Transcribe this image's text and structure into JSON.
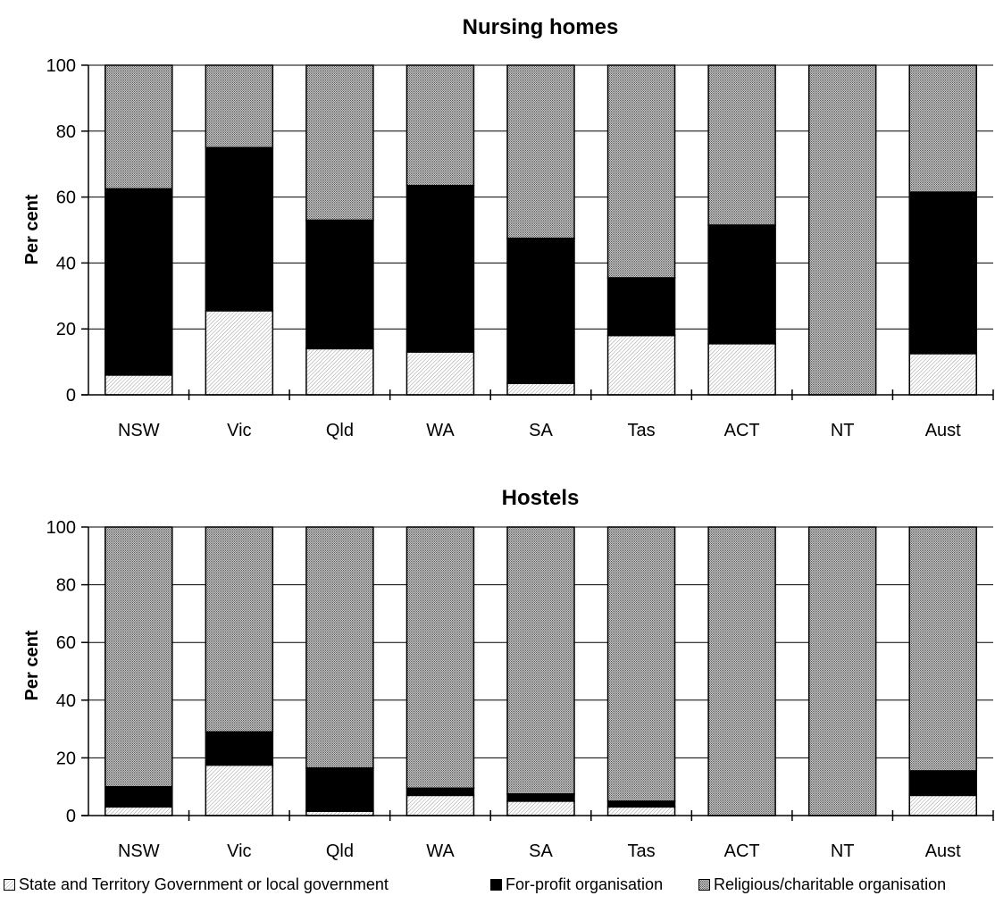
{
  "chart_data": [
    {
      "type": "bar",
      "stacked": true,
      "title": "Nursing homes",
      "xlabel": "",
      "ylabel": "Per cent",
      "ylim": [
        0,
        100
      ],
      "yticks": [
        "0",
        "20",
        "40",
        "60",
        "80",
        "100"
      ],
      "categories": [
        "NSW",
        "Vic",
        "Qld",
        "WA",
        "SA",
        "Tas",
        "ACT",
        "NT",
        "Aust"
      ],
      "grid": true,
      "series": [
        {
          "name": "State and Territory Government or local government",
          "values": [
            6,
            25.5,
            14,
            13,
            3.5,
            18,
            15.5,
            0,
            12.5
          ]
        },
        {
          "name": "For-profit organisation",
          "values": [
            56.5,
            49.5,
            39,
            50.5,
            44,
            17.5,
            36,
            0,
            49
          ]
        },
        {
          "name": "Religious/charitable organisation",
          "values": [
            37.5,
            25,
            47,
            36.5,
            52.5,
            64.5,
            48.5,
            100,
            38.5
          ]
        }
      ]
    },
    {
      "type": "bar",
      "stacked": true,
      "title": "Hostels",
      "xlabel": "",
      "ylabel": "Per cent",
      "ylim": [
        0,
        100
      ],
      "yticks": [
        "0",
        "20",
        "40",
        "60",
        "80",
        "100"
      ],
      "categories": [
        "NSW",
        "Vic",
        "Qld",
        "WA",
        "SA",
        "Tas",
        "ACT",
        "NT",
        "Aust"
      ],
      "grid": true,
      "series": [
        {
          "name": "State and Territory Government or local government",
          "values": [
            3,
            17.5,
            1.5,
            7,
            5,
            3,
            0,
            0,
            7
          ]
        },
        {
          "name": "For-profit organisation",
          "values": [
            7,
            11.5,
            15,
            2.5,
            2.5,
            2,
            0,
            0,
            8.5
          ]
        },
        {
          "name": "Religious/charitable organisation",
          "values": [
            90,
            71,
            83.5,
            90.5,
            92.5,
            95,
            100,
            100,
            84.5
          ]
        }
      ]
    }
  ],
  "legend": {
    "position": "bottom",
    "items": [
      {
        "label": "State and Territory Government or local government",
        "pattern": "light-hatch"
      },
      {
        "label": "For-profit organisation",
        "pattern": "solid-black"
      },
      {
        "label": "Religious/charitable organisation",
        "pattern": "dense-hatch"
      }
    ]
  },
  "colors": {
    "government": "#dcdcdc",
    "forprofit": "#000000",
    "religious": "#a8a8a8",
    "axis": "#000000"
  }
}
